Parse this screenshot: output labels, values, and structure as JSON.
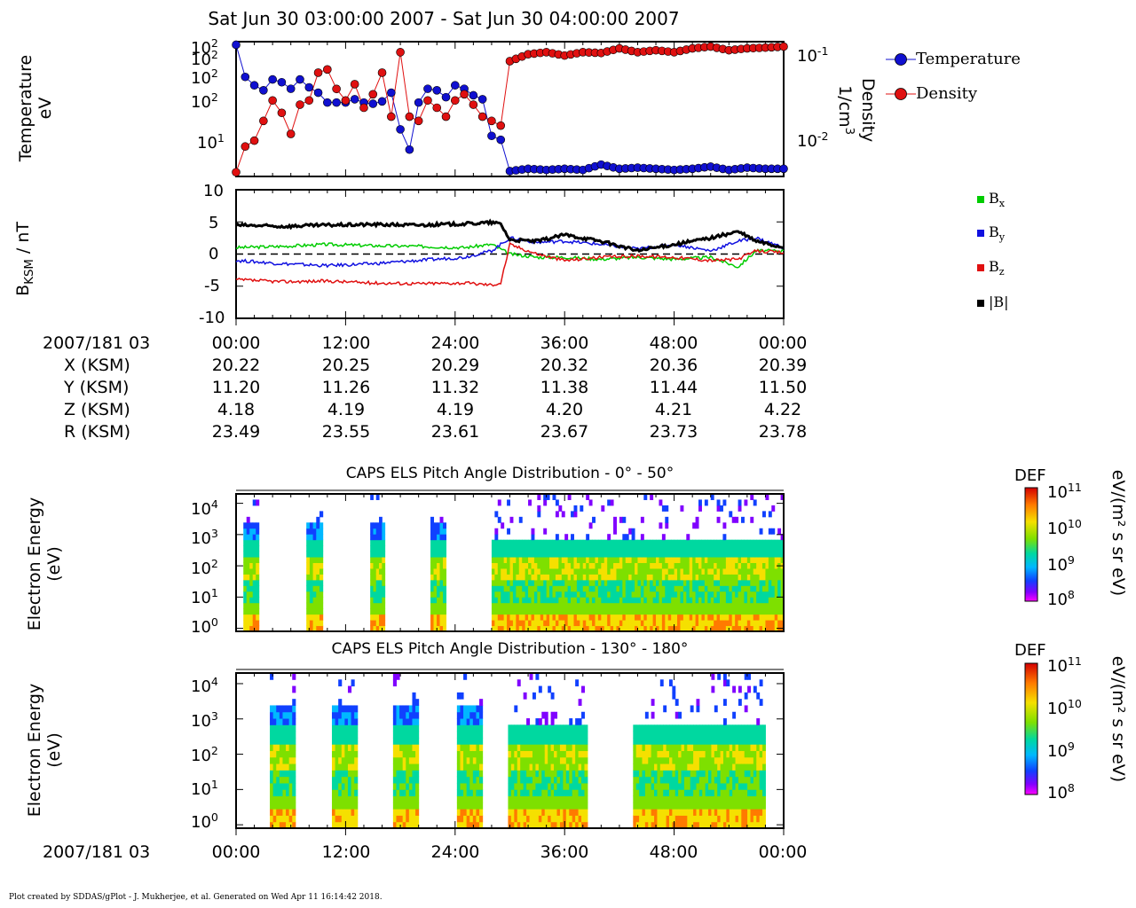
{
  "title": "Sat Jun 30 03:00:00 2007 - Sat Jun 30 04:00:00 2007",
  "colors": {
    "temperature": "#1010d0",
    "density": "#e01010",
    "bx": "#00cc00",
    "by": "#1010e0",
    "bz": "#e01010",
    "btotal": "#000000"
  },
  "panel1": {
    "ylabel_line1": "Temperature",
    "ylabel_line2": "eV",
    "y2label_line1": "Density",
    "y2label_line2": "1/cm",
    "y2label_sup": "3",
    "yticks": [
      {
        "base": "10",
        "exp": "2"
      },
      {
        "base": "10",
        "exp": "2"
      },
      {
        "base": "10",
        "exp": "2"
      },
      {
        "base": "10",
        "exp": "2"
      },
      {
        "base": "10",
        "exp": "1"
      }
    ],
    "y2ticks": [
      {
        "base": "10",
        "exp": "-1"
      },
      {
        "base": "10",
        "exp": "-2"
      }
    ],
    "legend": [
      "Temperature",
      "Density"
    ]
  },
  "panel2": {
    "ylabel": "B",
    "ylabel_sub": "KSM",
    "ylabel_rest": " / nT",
    "yticks": [
      "10",
      "5",
      "0",
      "-5",
      "-10"
    ],
    "legend": [
      {
        "base": "B",
        "sub": "x"
      },
      {
        "base": "B",
        "sub": "y"
      },
      {
        "base": "B",
        "sub": "z"
      },
      {
        "base": "|B|",
        "sub": ""
      }
    ]
  },
  "ephemeris": {
    "labels": [
      "2007/181 03",
      "X (KSM)",
      "Y (KSM)",
      "Z (KSM)",
      "R (KSM)"
    ],
    "times": [
      "00:00",
      "12:00",
      "24:00",
      "36:00",
      "48:00",
      "00:00"
    ],
    "rows": [
      [
        "20.22",
        "20.25",
        "20.29",
        "20.32",
        "20.36",
        "20.39"
      ],
      [
        "11.20",
        "11.26",
        "11.32",
        "11.38",
        "11.44",
        "11.50"
      ],
      [
        "4.18",
        "4.19",
        "4.19",
        "4.20",
        "4.21",
        "4.22"
      ],
      [
        "23.49",
        "23.55",
        "23.61",
        "23.67",
        "23.73",
        "23.78"
      ]
    ]
  },
  "panel3": {
    "title": "CAPS ELS Pitch Angle Distribution - 0° - 50°",
    "ylabel_line1": "Electron Energy",
    "ylabel_line2": "(eV)",
    "yticks": [
      {
        "base": "10",
        "exp": "4"
      },
      {
        "base": "10",
        "exp": "3"
      },
      {
        "base": "10",
        "exp": "2"
      },
      {
        "base": "10",
        "exp": "1"
      },
      {
        "base": "10",
        "exp": "0"
      }
    ]
  },
  "panel4": {
    "title": "CAPS ELS Pitch Angle Distribution - 130° - 180°",
    "ylabel_line1": "Electron Energy",
    "ylabel_line2": "(eV)",
    "yticks": [
      {
        "base": "10",
        "exp": "4"
      },
      {
        "base": "10",
        "exp": "3"
      },
      {
        "base": "10",
        "exp": "2"
      },
      {
        "base": "10",
        "exp": "1"
      },
      {
        "base": "10",
        "exp": "0"
      }
    ]
  },
  "colorbar": {
    "label": "DEF",
    "units": "eV/(m² s sr eV)",
    "ticks": [
      {
        "base": "10",
        "exp": "11"
      },
      {
        "base": "10",
        "exp": "10"
      },
      {
        "base": "10",
        "exp": "9"
      },
      {
        "base": "10",
        "exp": "8"
      }
    ]
  },
  "bottom_axis": {
    "label": "2007/181 03",
    "times": [
      "00:00",
      "12:00",
      "24:00",
      "36:00",
      "48:00",
      "00:00"
    ]
  },
  "footer": "Plot created by SDDAS/gPlot - J. Mukherjee, et al.  Generated on Wed Apr 11 16:14:42 2018.",
  "chart_data": [
    {
      "type": "line",
      "xlabel": "",
      "ylabel": "Temperature eV",
      "y2label": "Density 1/cm3",
      "ylog": true,
      "y2log": true,
      "ylim": [
        2,
        200
      ],
      "y2lim": [
        0.0045,
        0.13
      ],
      "x_range_minutes": [
        0,
        60
      ],
      "series": [
        {
          "name": "Temperature",
          "axis": "left",
          "x": [
            0,
            1,
            2,
            3,
            4,
            5,
            6,
            7,
            8,
            9,
            10,
            11,
            12,
            13,
            14,
            15,
            16,
            17,
            18,
            19,
            20,
            21,
            22,
            23,
            24,
            25,
            26,
            27,
            28,
            29,
            30,
            32,
            34,
            36,
            38,
            40,
            42,
            44,
            46,
            48,
            50,
            52,
            54,
            56,
            58,
            60
          ],
          "y": [
            180,
            60,
            45,
            38,
            55,
            50,
            40,
            55,
            42,
            35,
            25,
            25,
            25,
            28,
            25,
            24,
            26,
            35,
            10,
            5,
            25,
            40,
            38,
            30,
            45,
            40,
            32,
            28,
            8,
            7,
            2.4,
            2.6,
            2.5,
            2.6,
            2.5,
            3.0,
            2.6,
            2.7,
            2.6,
            2.5,
            2.6,
            2.8,
            2.5,
            2.7,
            2.6,
            2.6
          ]
        },
        {
          "name": "Density",
          "axis": "right",
          "x": [
            0,
            1,
            2,
            3,
            4,
            5,
            6,
            7,
            8,
            9,
            10,
            11,
            12,
            13,
            14,
            15,
            16,
            17,
            18,
            19,
            20,
            21,
            22,
            23,
            24,
            25,
            26,
            27,
            28,
            29,
            30,
            32,
            34,
            36,
            38,
            40,
            42,
            44,
            46,
            48,
            50,
            52,
            54,
            56,
            58,
            60
          ],
          "y": [
            0.005,
            0.0095,
            0.011,
            0.018,
            0.03,
            0.022,
            0.013,
            0.027,
            0.03,
            0.06,
            0.065,
            0.04,
            0.03,
            0.045,
            0.025,
            0.035,
            0.06,
            0.02,
            0.1,
            0.02,
            0.018,
            0.03,
            0.025,
            0.02,
            0.03,
            0.035,
            0.027,
            0.02,
            0.018,
            0.016,
            0.08,
            0.095,
            0.1,
            0.092,
            0.1,
            0.098,
            0.11,
            0.1,
            0.105,
            0.1,
            0.11,
            0.115,
            0.105,
            0.11,
            0.112,
            0.115
          ]
        }
      ]
    },
    {
      "type": "line",
      "ylabel": "B_KSM / nT",
      "ylim": [
        -10,
        10
      ],
      "x_range_minutes": [
        0,
        60
      ],
      "series": [
        {
          "name": "Bx",
          "x": [
            0,
            5,
            10,
            15,
            20,
            25,
            28,
            30,
            33,
            36,
            40,
            44,
            48,
            52,
            55,
            57,
            60
          ],
          "y": [
            1,
            1.2,
            1.5,
            1.3,
            1.2,
            1.0,
            1.5,
            0,
            -0.5,
            -0.5,
            -0.8,
            -0.5,
            -0.8,
            -0.5,
            -2.0,
            0.5,
            0.5
          ]
        },
        {
          "name": "By",
          "x": [
            0,
            5,
            10,
            15,
            20,
            25,
            28,
            30,
            33,
            36,
            40,
            44,
            48,
            52,
            55,
            57,
            60
          ],
          "y": [
            -1,
            -1.5,
            -1.8,
            -1.5,
            -1.0,
            -0.5,
            0.5,
            2.5,
            1.8,
            2.0,
            1.5,
            0.8,
            1.5,
            0.5,
            2.0,
            2.5,
            1.0
          ]
        },
        {
          "name": "Bz",
          "x": [
            0,
            5,
            10,
            15,
            20,
            25,
            28,
            29,
            30,
            33,
            36,
            40,
            44,
            48,
            52,
            55,
            57,
            60
          ],
          "y": [
            -4,
            -4.3,
            -4.2,
            -4.5,
            -4.6,
            -4.5,
            -4.8,
            -4.5,
            1.5,
            0,
            -1.0,
            -0.5,
            -0.3,
            -0.5,
            -1.0,
            -0.8,
            0.5,
            0.2
          ]
        },
        {
          "name": "|B|",
          "x": [
            0,
            5,
            10,
            15,
            20,
            25,
            28,
            29,
            30,
            33,
            36,
            40,
            44,
            48,
            52,
            55,
            57,
            60
          ],
          "y": [
            4.5,
            4.3,
            4.5,
            4.6,
            4.5,
            4.7,
            4.9,
            4.7,
            2.2,
            2.0,
            3.0,
            2.0,
            0.5,
            1.5,
            2.5,
            3.5,
            2.0,
            1.0
          ]
        }
      ]
    },
    {
      "type": "heatmap",
      "title": "CAPS ELS Pitch Angle Distribution - 0° - 50°",
      "ylabel": "Electron Energy (eV)",
      "ylog": true,
      "ylim": [
        0.8,
        20000
      ],
      "x_range_minutes": [
        0,
        60
      ],
      "colorbar": {
        "label": "DEF",
        "range": [
          100000000.0,
          100000000000.0
        ],
        "log": true
      },
      "blocks_minutes": [
        [
          0.8,
          2.5
        ],
        [
          7.7,
          9.5
        ],
        [
          14.7,
          16.3
        ],
        [
          21.3,
          23.0
        ],
        [
          28.0,
          60
        ]
      ]
    },
    {
      "type": "heatmap",
      "title": "CAPS ELS Pitch Angle Distribution - 130° - 180°",
      "ylabel": "Electron Energy (eV)",
      "ylog": true,
      "ylim": [
        0.8,
        20000
      ],
      "x_range_minutes": [
        0,
        60
      ],
      "colorbar": {
        "label": "DEF",
        "range": [
          100000000.0,
          100000000000.0
        ],
        "log": true
      },
      "blocks_minutes": [
        [
          3.7,
          6.5
        ],
        [
          10.5,
          13.3
        ],
        [
          17.2,
          20.0
        ],
        [
          24.2,
          27.0
        ],
        [
          29.8,
          38.5
        ],
        [
          43.5,
          58.0
        ]
      ]
    }
  ]
}
